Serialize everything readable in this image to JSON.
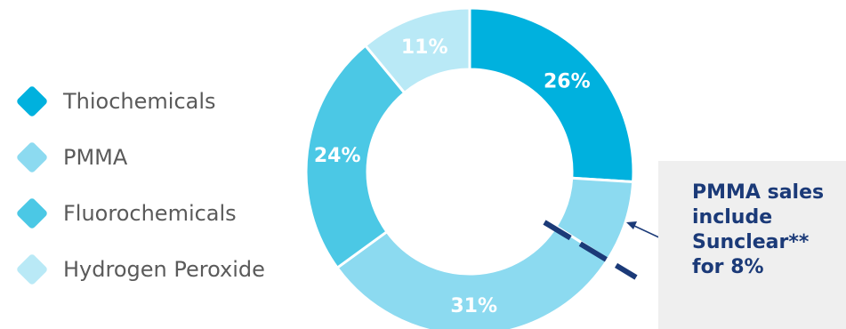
{
  "chart_data": {
    "type": "pie",
    "title": "",
    "categories": [
      "Thiochemicals",
      "PMMA",
      "Fluorochemicals",
      "Hydrogen Peroxide"
    ],
    "slices": [
      {
        "label": "Thiochemicals",
        "value": 26,
        "display": "26%",
        "color": "#00b1de"
      },
      {
        "label": "PMMA",
        "value": 8,
        "display": "",
        "color": "#8cdaf0"
      },
      {
        "label": "PMMA",
        "value": 31,
        "display": "31%",
        "color": "#8cdaf0"
      },
      {
        "label": "Fluorochemicals",
        "value": 24,
        "display": "24%",
        "color": "#4bc8e5"
      },
      {
        "label": "Hydrogen Peroxide",
        "value": 11,
        "display": "11%",
        "color": "#b9e9f6"
      }
    ],
    "legend": [
      {
        "label": "Thiochemicals",
        "color": "#00b1de"
      },
      {
        "label": "PMMA",
        "color": "#8cdaf0"
      },
      {
        "label": "Fluorochemicals",
        "color": "#4bc8e5"
      },
      {
        "label": "Hydrogen Peroxide",
        "color": "#b9e9f6"
      }
    ],
    "legend_position": "left",
    "annotation": {
      "text": "PMMA sales include Sunclear** for 8%",
      "color": "#1b3a78"
    }
  }
}
